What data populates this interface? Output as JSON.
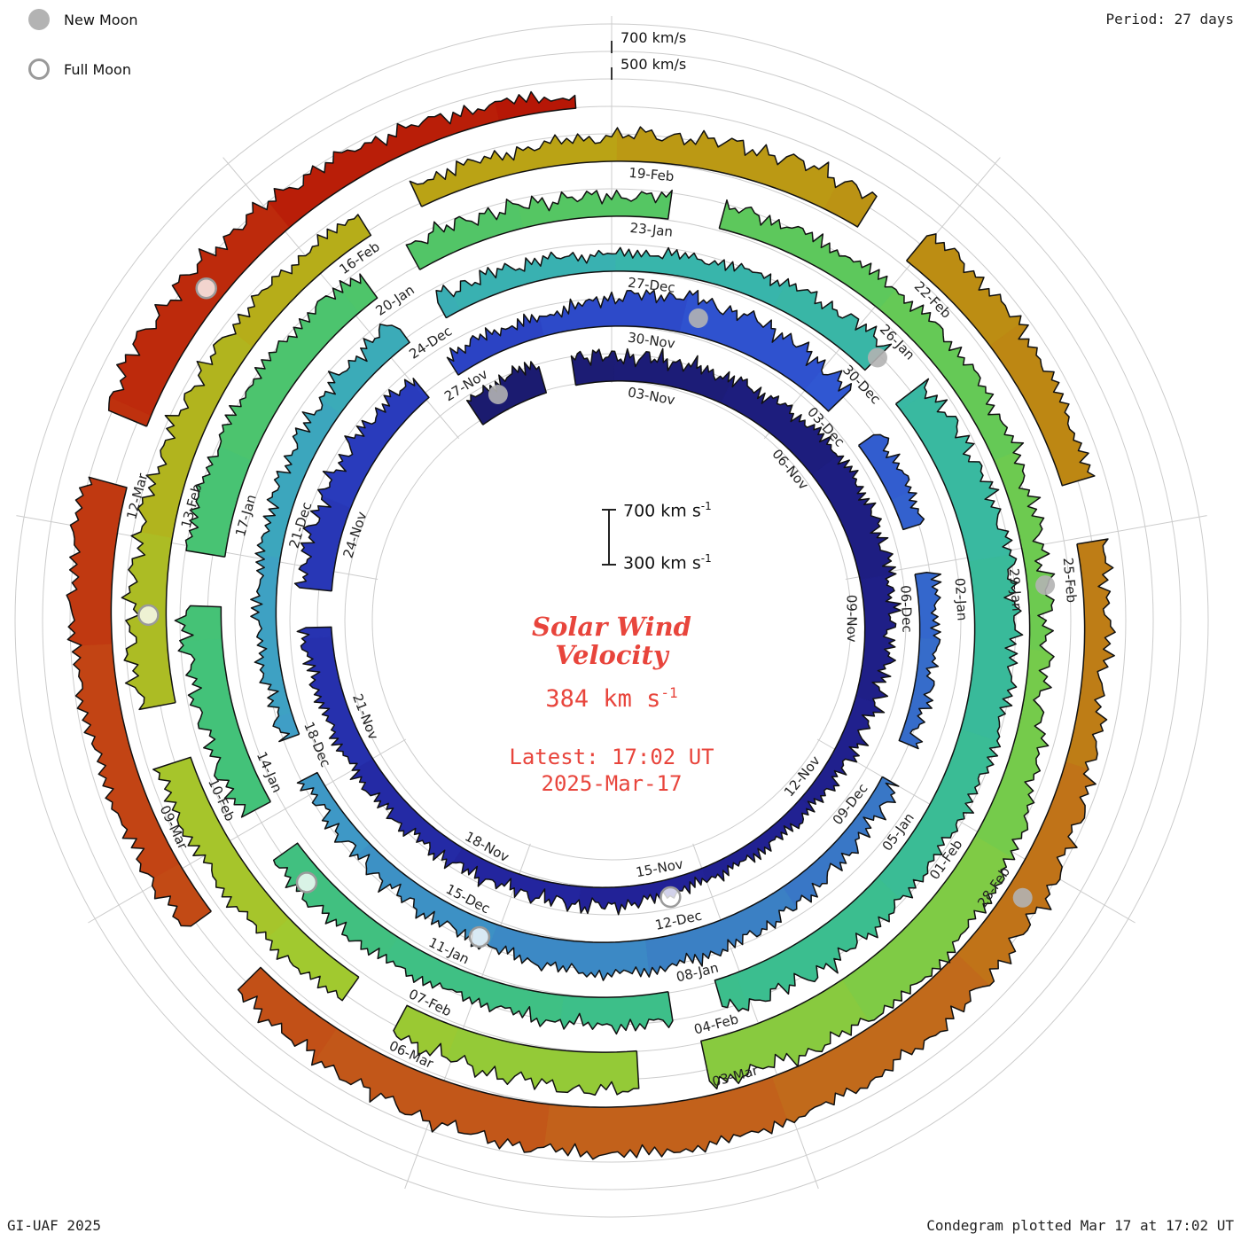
{
  "meta": {
    "credit": "GI-UAF 2025",
    "plotted": "Condegram plotted Mar 17 at 17:02 UT",
    "period_label": "Period: 27 days"
  },
  "legend": {
    "new_moon": "New Moon",
    "full_moon": "Full Moon"
  },
  "scale": {
    "outer_700": "700 km/s",
    "outer_500": "500 km/s",
    "bar_top": "700 km s",
    "bar_top_sup": "-1",
    "bar_bottom": "300 km s",
    "bar_bottom_sup": "-1"
  },
  "center": {
    "title1": "Solar Wind",
    "title2": "Velocity",
    "value": "384 km s",
    "value_sup": "-1",
    "latest": "Latest: 17:02 UT",
    "date": "2025-Mar-17"
  },
  "style": {
    "accent_red": "#e8453c",
    "grid_color": "#cccccc",
    "label_color": "#222222",
    "edge_color": "#111111",
    "new_moon_color": "#b3b3b3",
    "full_moon_stroke": "#9a9a9a"
  },
  "chart_data": {
    "type": "line",
    "variant": "condegram-spiral",
    "description": "Solar wind velocity condegram: spiral polar plot, one turn = 27 days, time runs clockwise from top, Nov 2024 through 17 Mar 2025. Band thickness above the spiral baseline encodes velocity (300-700 km/s).",
    "period_days": 27,
    "t_zero_date": "2024-Nov-03",
    "start_day": -2.5,
    "end_day": 134.7,
    "velocity_axis": {
      "min": 300,
      "max": 700,
      "units": "km/s"
    },
    "latest_velocity_kms": 384,
    "latest_time": "17:02 UT 2025-Mar-17",
    "date_labels": [
      {
        "label": "03-Nov",
        "t": 0
      },
      {
        "label": "06-Nov",
        "t": 3
      },
      {
        "label": "09-Nov",
        "t": 6
      },
      {
        "label": "12-Nov",
        "t": 9
      },
      {
        "label": "15-Nov",
        "t": 12
      },
      {
        "label": "18-Nov",
        "t": 15
      },
      {
        "label": "21-Nov",
        "t": 18
      },
      {
        "label": "24-Nov",
        "t": 21
      },
      {
        "label": "27-Nov",
        "t": 24
      },
      {
        "label": "30-Nov",
        "t": 27
      },
      {
        "label": "03-Dec",
        "t": 30
      },
      {
        "label": "06-Dec",
        "t": 33
      },
      {
        "label": "09-Dec",
        "t": 36
      },
      {
        "label": "12-Dec",
        "t": 39
      },
      {
        "label": "15-Dec",
        "t": 42
      },
      {
        "label": "18-Dec",
        "t": 45
      },
      {
        "label": "21-Dec",
        "t": 48
      },
      {
        "label": "24-Dec",
        "t": 51
      },
      {
        "label": "27-Dec",
        "t": 54
      },
      {
        "label": "30-Dec",
        "t": 57
      },
      {
        "label": "02-Jan",
        "t": 60
      },
      {
        "label": "05-Jan",
        "t": 63
      },
      {
        "label": "08-Jan",
        "t": 66
      },
      {
        "label": "11-Jan",
        "t": 69
      },
      {
        "label": "14-Jan",
        "t": 72
      },
      {
        "label": "17-Jan",
        "t": 75
      },
      {
        "label": "20-Jan",
        "t": 78
      },
      {
        "label": "23-Jan",
        "t": 81
      },
      {
        "label": "26-Jan",
        "t": 84
      },
      {
        "label": "29-Jan",
        "t": 87
      },
      {
        "label": "01-Feb",
        "t": 90
      },
      {
        "label": "04-Feb",
        "t": 93
      },
      {
        "label": "07-Feb",
        "t": 96
      },
      {
        "label": "10-Feb",
        "t": 99
      },
      {
        "label": "13-Feb",
        "t": 102
      },
      {
        "label": "16-Feb",
        "t": 105
      },
      {
        "label": "19-Feb",
        "t": 108
      },
      {
        "label": "22-Feb",
        "t": 111
      },
      {
        "label": "25-Feb",
        "t": 114
      },
      {
        "label": "28-Feb",
        "t": 117
      },
      {
        "label": "03-Mar",
        "t": 120
      },
      {
        "label": "06-Mar",
        "t": 123
      },
      {
        "label": "09-Mar",
        "t": 126
      },
      {
        "label": "12-Mar",
        "t": 129
      }
    ],
    "velocity_profile": [
      [
        -2.5,
        490
      ],
      [
        -1,
        530
      ],
      [
        0,
        480
      ],
      [
        2,
        490
      ],
      [
        4,
        545
      ],
      [
        6,
        525
      ],
      [
        8,
        455
      ],
      [
        10,
        405
      ],
      [
        12,
        390
      ],
      [
        13.5,
        435
      ],
      [
        15,
        420
      ],
      [
        17,
        445
      ],
      [
        19,
        475
      ],
      [
        21,
        525
      ],
      [
        23,
        505
      ],
      [
        24.5,
        465
      ],
      [
        26,
        435
      ],
      [
        27,
        505
      ],
      [
        28,
        565
      ],
      [
        29.5,
        545
      ],
      [
        31,
        475
      ],
      [
        33,
        435
      ],
      [
        35,
        405
      ],
      [
        37,
        425
      ],
      [
        39,
        505
      ],
      [
        40.5,
        535
      ],
      [
        42,
        475
      ],
      [
        44,
        425
      ],
      [
        45.5,
        405
      ],
      [
        47,
        435
      ],
      [
        49,
        455
      ],
      [
        51,
        485
      ],
      [
        53,
        440
      ],
      [
        54,
        425
      ],
      [
        55.5,
        465
      ],
      [
        57,
        525
      ],
      [
        58.5,
        565
      ],
      [
        60,
        605
      ],
      [
        62,
        575
      ],
      [
        63.5,
        535
      ],
      [
        65,
        560
      ],
      [
        67,
        515
      ],
      [
        69,
        475
      ],
      [
        71,
        505
      ],
      [
        73,
        545
      ],
      [
        75,
        585
      ],
      [
        77,
        555
      ],
      [
        79,
        495
      ],
      [
        81,
        445
      ],
      [
        83,
        475
      ],
      [
        85,
        495
      ],
      [
        87,
        445
      ],
      [
        88.5,
        425
      ],
      [
        90,
        610
      ],
      [
        91.5,
        665
      ],
      [
        93,
        625
      ],
      [
        95,
        565
      ],
      [
        97,
        505
      ],
      [
        99,
        545
      ],
      [
        101,
        565
      ],
      [
        103,
        525
      ],
      [
        105,
        485
      ],
      [
        107,
        455
      ],
      [
        108,
        485
      ],
      [
        110,
        545
      ],
      [
        112,
        565
      ],
      [
        114,
        485
      ],
      [
        115.5,
        455
      ],
      [
        117,
        565
      ],
      [
        119,
        625
      ],
      [
        121,
        655
      ],
      [
        123,
        605
      ],
      [
        125,
        525
      ],
      [
        127,
        545
      ],
      [
        129,
        605
      ],
      [
        130.5,
        625
      ],
      [
        132,
        545
      ],
      [
        133.5,
        455
      ],
      [
        134.7,
        384
      ]
    ],
    "gaps": [
      [
        -1.2,
        -0.7
      ],
      [
        20.2,
        20.7
      ],
      [
        24.1,
        24.6
      ],
      [
        30.5,
        31.1
      ],
      [
        32.5,
        33.1
      ],
      [
        35.5,
        36.0
      ],
      [
        45.2,
        45.7
      ],
      [
        51.3,
        51.8
      ],
      [
        57.4,
        57.9
      ],
      [
        66.3,
        66.8
      ],
      [
        71.6,
        72.1
      ],
      [
        74.4,
        74.9
      ],
      [
        78.3,
        78.8
      ],
      [
        81.6,
        82.1
      ],
      [
        93.6,
        94.2
      ],
      [
        96.6,
        97.1
      ],
      [
        99.9,
        100.4
      ],
      [
        105.6,
        106.1
      ],
      [
        110.4,
        110.9
      ],
      [
        113.5,
        114.0
      ],
      [
        124.9,
        125.5
      ],
      [
        129.4,
        129.9
      ]
    ],
    "new_moons": [
      {
        "date": "2024-Nov-01",
        "t": -2.0
      },
      {
        "date": "2024-Dec-01",
        "t": 28.2
      },
      {
        "date": "2024-Dec-30",
        "t": 57.4
      },
      {
        "date": "2025-Jan-29",
        "t": 87.4
      },
      {
        "date": "2025-Feb-28",
        "t": 117.3
      }
    ],
    "full_moons": [
      {
        "date": "2024-Nov-15",
        "t": 12.6
      },
      {
        "date": "2024-Dec-15",
        "t": 42.2
      },
      {
        "date": "2025-Jan-13",
        "t": 71.2
      },
      {
        "date": "2025-Feb-12",
        "t": 101.3
      },
      {
        "date": "2025-Mar-14",
        "t": 131.2
      }
    ],
    "colormap": [
      [
        -2.5,
        "#1b1b6e"
      ],
      [
        14,
        "#22229a"
      ],
      [
        24,
        "#2a3ec0"
      ],
      [
        30,
        "#3056d2"
      ],
      [
        38,
        "#3a7cc4"
      ],
      [
        46,
        "#3f9ec6"
      ],
      [
        54,
        "#38b4ae"
      ],
      [
        64,
        "#3abd92"
      ],
      [
        74,
        "#44c277"
      ],
      [
        82,
        "#58c75f"
      ],
      [
        90,
        "#79cb48"
      ],
      [
        98,
        "#a3c92e"
      ],
      [
        106,
        "#b9a815"
      ],
      [
        113,
        "#bd8613"
      ],
      [
        120,
        "#c2661c"
      ],
      [
        127,
        "#c24414"
      ],
      [
        131,
        "#bd2a0c"
      ],
      [
        134.7,
        "#b51505"
      ]
    ]
  }
}
